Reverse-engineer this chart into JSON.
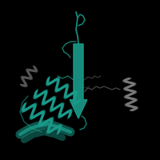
{
  "background_color": "#000000",
  "teal_color": "#1a9b8a",
  "teal_dark": "#0d7a6b",
  "gray_color": "#787878",
  "gray_dark": "#555555",
  "loop_color_dark": "#3a3a3a",
  "loop_color_mid": "#4a4a4a",
  "figsize": [
    2.0,
    2.0
  ],
  "dpi": 100
}
